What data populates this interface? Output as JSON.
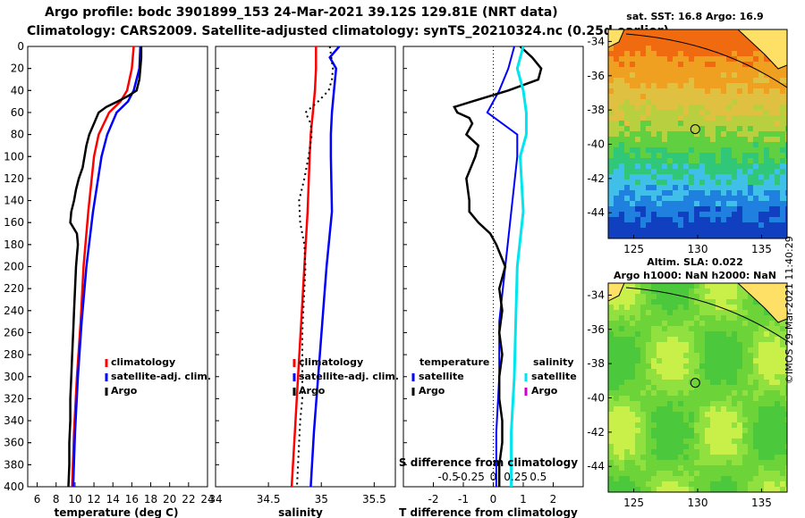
{
  "header": {
    "title_line1": "Argo profile: bodc 3901899_153 24-Mar-2021 39.12S 129.81E (NRT data)",
    "title_line2": "Climatology: CARS2009. Satellite-adjusted climatology: synTS_20210324.nc (0.25d earlier)"
  },
  "colors": {
    "climatology": "#ff0000",
    "satellite": "#0000ff",
    "argo": "#000000",
    "sat_salinity": "#00e5ee",
    "argo_salinity": "#cc00cc"
  },
  "depth_ticks": [
    "0",
    "20",
    "40",
    "60",
    "80",
    "100",
    "120",
    "140",
    "160",
    "180",
    "200",
    "220",
    "240",
    "260",
    "280",
    "300",
    "320",
    "340",
    "360",
    "380",
    "400"
  ],
  "chart_data": [
    {
      "type": "line",
      "id": "temperature",
      "xlabel": "temperature (deg C)",
      "xlim": [
        5,
        24
      ],
      "ylim": [
        400,
        0
      ],
      "x_ticks": [
        "6",
        "8",
        "10",
        "12",
        "14",
        "16",
        "18",
        "20",
        "22",
        "24"
      ],
      "legend": [
        "climatology",
        "satellite-adj. clim.",
        "Argo"
      ],
      "series": [
        {
          "name": "climatology",
          "depth": [
            0,
            20,
            40,
            50,
            60,
            80,
            100,
            150,
            200,
            250,
            300,
            350,
            400
          ],
          "values": [
            16.2,
            16.0,
            15.5,
            14.8,
            13.6,
            12.5,
            12.0,
            11.4,
            10.9,
            10.6,
            10.2,
            9.9,
            9.7
          ]
        },
        {
          "name": "satellite-adj. clim.",
          "depth": [
            0,
            20,
            40,
            50,
            60,
            80,
            100,
            150,
            200,
            250,
            300,
            350,
            400
          ],
          "values": [
            16.9,
            16.8,
            16.2,
            15.6,
            14.4,
            13.4,
            12.8,
            11.9,
            11.2,
            10.7,
            10.3,
            10.0,
            9.8
          ]
        },
        {
          "name": "Argo",
          "depth": [
            0,
            10,
            20,
            30,
            40,
            45,
            50,
            55,
            60,
            70,
            80,
            90,
            100,
            110,
            120,
            130,
            140,
            150,
            160,
            170,
            180,
            190,
            200,
            220,
            240,
            260,
            280,
            300,
            320,
            340,
            360,
            380,
            400
          ],
          "values": [
            17.0,
            17.0,
            16.9,
            16.8,
            16.5,
            15.6,
            14.5,
            13.3,
            12.5,
            12.0,
            11.5,
            11.2,
            11.0,
            10.8,
            10.4,
            10.1,
            9.9,
            9.6,
            9.5,
            10.2,
            10.3,
            10.2,
            10.1,
            10.0,
            9.9,
            9.8,
            9.7,
            9.6,
            9.5,
            9.5,
            9.4,
            9.4,
            9.3
          ]
        }
      ]
    },
    {
      "type": "line",
      "id": "salinity",
      "xlabel": "salinity",
      "xlim": [
        34.0,
        35.7
      ],
      "ylim": [
        400,
        0
      ],
      "x_ticks": [
        "34",
        "34.5",
        "35",
        "35.5"
      ],
      "legend": [
        "climatology",
        "satellite-adj. clim.",
        "Argo"
      ],
      "series": [
        {
          "name": "climatology",
          "depth": [
            0,
            20,
            40,
            60,
            80,
            100,
            150,
            200,
            250,
            300,
            350,
            400
          ],
          "values": [
            34.95,
            34.95,
            34.94,
            34.92,
            34.9,
            34.89,
            34.87,
            34.84,
            34.81,
            34.78,
            34.75,
            34.72
          ]
        },
        {
          "name": "satellite-adj. clim.",
          "depth": [
            0,
            10,
            20,
            40,
            60,
            80,
            100,
            150,
            200,
            250,
            300,
            350,
            400
          ],
          "values": [
            35.17,
            35.08,
            35.14,
            35.12,
            35.1,
            35.09,
            35.09,
            35.1,
            35.05,
            35.01,
            34.97,
            34.93,
            34.9
          ]
        },
        {
          "name": "Argo",
          "depth": [
            0,
            20,
            30,
            40,
            50,
            60,
            70,
            80,
            100,
            120,
            140,
            160,
            180,
            200,
            220,
            240,
            260,
            280,
            300,
            320,
            340,
            360,
            380,
            400
          ],
          "values": [
            35.08,
            35.11,
            35.1,
            35.07,
            34.97,
            34.85,
            34.9,
            34.91,
            34.88,
            34.84,
            34.79,
            34.8,
            34.84,
            34.85,
            34.84,
            34.83,
            34.82,
            34.82,
            34.82,
            34.82,
            34.8,
            34.79,
            34.78,
            34.77
          ]
        }
      ]
    },
    {
      "type": "line",
      "id": "difference",
      "xlabel": "T difference from climatology",
      "xlabel_top": "S difference from climatology",
      "xlim": [
        -3,
        3
      ],
      "ylim": [
        400,
        0
      ],
      "x_ticks": [
        "-2",
        "-1",
        "0",
        "1",
        "2"
      ],
      "x_ticks_S": [
        "-0.5",
        "-0.25",
        "0",
        "0.25",
        "0.5"
      ],
      "legend_temperature": {
        "title": "temperature",
        "items": [
          "satellite",
          "Argo"
        ]
      },
      "legend_salinity": {
        "title": "salinity",
        "items": [
          "satellite",
          "Argo"
        ]
      },
      "series": [
        {
          "name": "temperature satellite",
          "depth": [
            0,
            20,
            40,
            60,
            80,
            100,
            150,
            200,
            250,
            300,
            350,
            400
          ],
          "values": [
            0.7,
            0.5,
            0.2,
            -0.2,
            0.8,
            0.8,
            0.6,
            0.4,
            0.2,
            0.2,
            0.1,
            0.1
          ]
        },
        {
          "name": "temperature Argo",
          "depth": [
            0,
            10,
            20,
            30,
            40,
            50,
            55,
            60,
            65,
            70,
            80,
            90,
            100,
            120,
            140,
            150,
            160,
            170,
            180,
            200,
            220,
            240,
            260,
            280,
            300,
            320,
            340,
            360,
            380,
            400
          ],
          "values": [
            0.9,
            1.3,
            1.6,
            1.5,
            0.5,
            -0.7,
            -1.3,
            -1.2,
            -0.8,
            -0.7,
            -0.9,
            -0.5,
            -0.6,
            -0.9,
            -0.8,
            -0.8,
            -0.5,
            -0.1,
            0.1,
            0.4,
            0.2,
            0.3,
            0.2,
            0.3,
            0.2,
            0.2,
            0.3,
            0.3,
            0.2,
            0.2
          ]
        },
        {
          "name": "salinity satellite",
          "depth": [
            0,
            20,
            40,
            60,
            80,
            100,
            150,
            200,
            250,
            300,
            350,
            400
          ],
          "values": [
            1.0,
            0.8,
            1.0,
            1.1,
            1.1,
            0.9,
            1.0,
            0.8,
            0.75,
            0.7,
            0.6,
            0.6
          ]
        }
      ]
    }
  ],
  "map_sst": {
    "title": "sat. SST: 16.8 Argo: 16.9",
    "lon_ticks": [
      "125",
      "130",
      "135"
    ],
    "lat_ticks": [
      "-34",
      "-36",
      "-38",
      "-40",
      "-42",
      "-44"
    ]
  },
  "map_sla": {
    "title_line1": "Altim. SLA: 0.022",
    "title_line2": "Argo h1000: NaN h2000: NaN",
    "lon_ticks": [
      "125",
      "130",
      "135"
    ],
    "lat_ticks": [
      "-34",
      "-36",
      "-38",
      "-40",
      "-42",
      "-44"
    ]
  },
  "credit": "©IMOS 29-Mar-2021 11:40:29"
}
